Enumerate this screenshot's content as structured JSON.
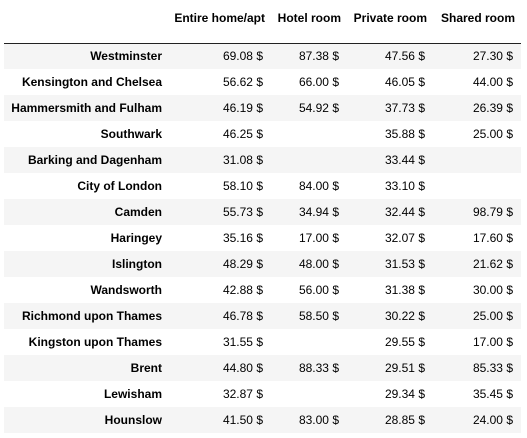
{
  "table": {
    "columns": [
      "Entire home/apt",
      "Hotel room",
      "Private room",
      "Shared room"
    ],
    "rows": [
      {
        "index": "Westminster",
        "values": [
          "69.08 $",
          "87.38 $",
          "47.56 $",
          "27.30 $"
        ]
      },
      {
        "index": "Kensington and Chelsea",
        "values": [
          "56.62 $",
          "66.00 $",
          "46.05 $",
          "44.00 $"
        ]
      },
      {
        "index": "Hammersmith and Fulham",
        "values": [
          "46.19 $",
          "54.92 $",
          "37.73 $",
          "26.39 $"
        ]
      },
      {
        "index": "Southwark",
        "values": [
          "46.25 $",
          "",
          "35.88 $",
          "25.00 $"
        ]
      },
      {
        "index": "Barking and Dagenham",
        "values": [
          "31.08 $",
          "",
          "33.44 $",
          ""
        ]
      },
      {
        "index": "City of London",
        "values": [
          "58.10 $",
          "84.00 $",
          "33.10 $",
          ""
        ]
      },
      {
        "index": "Camden",
        "values": [
          "55.73 $",
          "34.94 $",
          "32.44 $",
          "98.79 $"
        ]
      },
      {
        "index": "Haringey",
        "values": [
          "35.16 $",
          "17.00 $",
          "32.07 $",
          "17.60 $"
        ]
      },
      {
        "index": "Islington",
        "values": [
          "48.29 $",
          "48.00 $",
          "31.53 $",
          "21.62 $"
        ]
      },
      {
        "index": "Wandsworth",
        "values": [
          "42.88 $",
          "56.00 $",
          "31.38 $",
          "30.00 $"
        ]
      },
      {
        "index": "Richmond upon Thames",
        "values": [
          "46.78 $",
          "58.50 $",
          "30.22 $",
          "25.00 $"
        ]
      },
      {
        "index": "Kingston upon Thames",
        "values": [
          "31.55 $",
          "",
          "29.55 $",
          "17.00 $"
        ]
      },
      {
        "index": "Brent",
        "values": [
          "44.80 $",
          "88.33 $",
          "29.51 $",
          "85.33 $"
        ]
      },
      {
        "index": "Lewisham",
        "values": [
          "32.87 $",
          "",
          "29.34 $",
          "35.45 $"
        ]
      },
      {
        "index": "Hounslow",
        "values": [
          "41.50 $",
          "83.00 $",
          "28.85 $",
          "24.00 $"
        ]
      }
    ]
  }
}
